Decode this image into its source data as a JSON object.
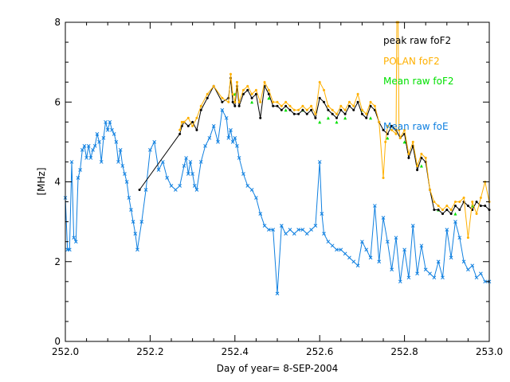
{
  "chart_data": {
    "type": "line",
    "title": "",
    "xlabel": "Day of year= 8-SEP-2004",
    "ylabel": "[MHz]",
    "xlim": [
      252.0,
      253.0
    ],
    "ylim": [
      0,
      8
    ],
    "x_ticks": [
      252.0,
      252.2,
      252.4,
      252.6,
      252.8,
      253.0
    ],
    "x_tick_labels": [
      "252.0",
      "252.2",
      "252.4",
      "252.6",
      "252.8",
      "253.0"
    ],
    "y_ticks": [
      0,
      2,
      4,
      6,
      8
    ],
    "y_tick_labels": [
      "0",
      "2",
      "4",
      "6",
      "8"
    ],
    "grid": false,
    "legend_position": "top-right",
    "series": [
      {
        "name": "peak raw foF2",
        "color": "#000000",
        "x": [
          252.175,
          252.27,
          252.275,
          252.28,
          252.29,
          252.3,
          252.31,
          252.32,
          252.335,
          252.35,
          252.37,
          252.385,
          252.39,
          252.395,
          252.4,
          252.405,
          252.41,
          252.42,
          252.43,
          252.44,
          252.45,
          252.46,
          252.47,
          252.48,
          252.49,
          252.5,
          252.51,
          252.52,
          252.53,
          252.54,
          252.55,
          252.56,
          252.57,
          252.58,
          252.59,
          252.6,
          252.61,
          252.62,
          252.63,
          252.64,
          252.65,
          252.66,
          252.67,
          252.68,
          252.69,
          252.7,
          252.71,
          252.72,
          252.73,
          252.74,
          252.75,
          252.76,
          252.77,
          252.78,
          252.79,
          252.8,
          252.81,
          252.82,
          252.83,
          252.84,
          252.85,
          252.86,
          252.87,
          252.88,
          252.89,
          252.9,
          252.91,
          252.92,
          252.93,
          252.94,
          252.95,
          252.96,
          252.97,
          252.98,
          252.99,
          253.0
        ],
        "values": [
          3.8,
          5.2,
          5.4,
          5.5,
          5.4,
          5.5,
          5.3,
          5.8,
          6.1,
          6.4,
          6.0,
          6.1,
          6.6,
          6.0,
          5.9,
          6.4,
          5.9,
          6.2,
          6.3,
          6.1,
          6.2,
          5.6,
          6.4,
          6.2,
          5.9,
          5.9,
          5.8,
          5.9,
          5.8,
          5.7,
          5.7,
          5.8,
          5.7,
          5.8,
          5.6,
          6.1,
          6.0,
          5.8,
          5.7,
          5.6,
          5.8,
          5.7,
          5.9,
          5.8,
          6.0,
          5.7,
          5.6,
          5.9,
          5.8,
          5.5,
          5.3,
          5.2,
          5.4,
          5.3,
          5.1,
          5.2,
          4.6,
          4.9,
          4.3,
          4.6,
          4.5,
          3.8,
          3.3,
          3.3,
          3.2,
          3.3,
          3.2,
          3.4,
          3.3,
          3.5,
          3.4,
          3.3,
          3.5,
          3.4,
          3.4,
          3.3
        ]
      },
      {
        "name": "POLAN foF2",
        "color": "#ffb000",
        "x": [
          252.27,
          252.275,
          252.28,
          252.29,
          252.3,
          252.31,
          252.32,
          252.335,
          252.35,
          252.37,
          252.385,
          252.39,
          252.395,
          252.4,
          252.405,
          252.41,
          252.42,
          252.43,
          252.44,
          252.45,
          252.46,
          252.47,
          252.48,
          252.49,
          252.5,
          252.51,
          252.52,
          252.53,
          252.54,
          252.55,
          252.56,
          252.57,
          252.58,
          252.59,
          252.6,
          252.61,
          252.62,
          252.63,
          252.64,
          252.65,
          252.66,
          252.67,
          252.68,
          252.69,
          252.7,
          252.71,
          252.72,
          252.73,
          252.74,
          252.75,
          252.755,
          252.76,
          252.77,
          252.78,
          252.782,
          252.785,
          252.787,
          252.79,
          252.8,
          252.81,
          252.82,
          252.83,
          252.84,
          252.85,
          252.86,
          252.87,
          252.88,
          252.89,
          252.9,
          252.91,
          252.92,
          252.93,
          252.94,
          252.95,
          252.96,
          252.97,
          252.98,
          252.99,
          253.0
        ],
        "values": [
          5.3,
          5.5,
          5.5,
          5.6,
          5.4,
          5.6,
          5.9,
          6.2,
          6.4,
          6.1,
          6.0,
          6.7,
          6.2,
          6.0,
          6.5,
          6.0,
          6.3,
          6.4,
          6.2,
          6.3,
          6.0,
          6.5,
          6.3,
          6.0,
          6.0,
          5.9,
          6.0,
          5.9,
          5.8,
          5.8,
          5.9,
          5.8,
          5.9,
          5.7,
          6.5,
          6.3,
          5.9,
          5.8,
          5.7,
          5.9,
          5.8,
          6.0,
          5.9,
          6.2,
          5.8,
          5.7,
          6.0,
          5.9,
          5.5,
          4.1,
          5.0,
          5.4,
          5.3,
          5.2,
          8.0,
          8.0,
          5.3,
          5.1,
          5.3,
          4.7,
          5.0,
          4.4,
          4.7,
          4.6,
          3.8,
          3.5,
          3.4,
          3.3,
          3.4,
          3.3,
          3.5,
          3.5,
          3.6,
          2.6,
          3.5,
          3.2,
          3.6,
          4.0,
          3.5
        ]
      },
      {
        "name": "Mean raw foF2",
        "color": "#00e000",
        "x": [
          252.4,
          252.44,
          252.48,
          252.52,
          252.56,
          252.6,
          252.62,
          252.64,
          252.66,
          252.7,
          252.72,
          252.76,
          252.8,
          252.84,
          252.88,
          252.92,
          252.96
        ],
        "values": [
          6.2,
          6.0,
          6.1,
          5.8,
          5.8,
          5.5,
          5.6,
          5.5,
          5.6,
          5.8,
          5.6,
          5.1,
          5.0,
          4.4,
          3.3,
          3.2,
          3.4
        ]
      },
      {
        "name": "Mean raw foE",
        "color": "#1080e0",
        "x": [
          252.0,
          252.005,
          252.01,
          252.015,
          252.02,
          252.025,
          252.03,
          252.035,
          252.04,
          252.045,
          252.05,
          252.055,
          252.06,
          252.065,
          252.07,
          252.075,
          252.08,
          252.085,
          252.09,
          252.095,
          252.1,
          252.105,
          252.11,
          252.115,
          252.12,
          252.125,
          252.13,
          252.135,
          252.14,
          252.145,
          252.15,
          252.155,
          252.16,
          252.165,
          252.17,
          252.18,
          252.19,
          252.2,
          252.21,
          252.22,
          252.23,
          252.24,
          252.25,
          252.26,
          252.27,
          252.28,
          252.285,
          252.29,
          252.295,
          252.3,
          252.305,
          252.31,
          252.32,
          252.33,
          252.34,
          252.35,
          252.36,
          252.37,
          252.38,
          252.385,
          252.39,
          252.395,
          252.4,
          252.405,
          252.41,
          252.42,
          252.43,
          252.44,
          252.45,
          252.46,
          252.47,
          252.48,
          252.49,
          252.5,
          252.51,
          252.52,
          252.53,
          252.54,
          252.55,
          252.56,
          252.57,
          252.58,
          252.59,
          252.6,
          252.605,
          252.61,
          252.62,
          252.63,
          252.64,
          252.65,
          252.66,
          252.67,
          252.68,
          252.69,
          252.7,
          252.71,
          252.72,
          252.73,
          252.74,
          252.75,
          252.76,
          252.77,
          252.78,
          252.79,
          252.8,
          252.81,
          252.82,
          252.83,
          252.84,
          252.85,
          252.86,
          252.87,
          252.88,
          252.89,
          252.9,
          252.91,
          252.92,
          252.93,
          252.94,
          252.95,
          252.96,
          252.97,
          252.98,
          252.99,
          253.0
        ],
        "values": [
          3.6,
          2.3,
          2.3,
          4.5,
          2.6,
          2.5,
          4.1,
          4.3,
          4.8,
          4.9,
          4.6,
          4.9,
          4.6,
          4.8,
          4.9,
          5.2,
          5.0,
          4.5,
          5.1,
          5.5,
          5.3,
          5.5,
          5.3,
          5.2,
          5.0,
          4.5,
          4.8,
          4.4,
          4.2,
          4.0,
          3.6,
          3.3,
          3.0,
          2.7,
          2.3,
          3.0,
          3.8,
          4.8,
          5.0,
          4.3,
          4.5,
          4.1,
          3.9,
          3.8,
          3.9,
          4.4,
          4.6,
          4.2,
          4.5,
          4.2,
          3.9,
          3.8,
          4.5,
          4.9,
          5.1,
          5.4,
          5.0,
          5.8,
          5.6,
          5.1,
          5.3,
          5.0,
          5.1,
          4.9,
          4.6,
          4.2,
          3.9,
          3.8,
          3.6,
          3.2,
          2.9,
          2.8,
          2.8,
          1.2,
          2.9,
          2.7,
          2.8,
          2.7,
          2.8,
          2.8,
          2.7,
          2.8,
          2.9,
          4.5,
          3.2,
          2.7,
          2.5,
          2.4,
          2.3,
          2.3,
          2.2,
          2.1,
          2.0,
          1.9,
          2.5,
          2.3,
          2.1,
          3.4,
          2.0,
          3.1,
          2.5,
          1.8,
          2.6,
          1.5,
          2.3,
          1.6,
          2.9,
          1.7,
          2.4,
          1.8,
          1.7,
          1.6,
          2.0,
          1.6,
          2.8,
          2.1,
          3.0,
          2.6,
          2.0,
          1.8,
          1.9,
          1.6,
          1.7,
          1.5,
          1.5
        ]
      }
    ]
  },
  "legend": {
    "items": [
      "peak raw foF2",
      "POLAN foF2",
      "Mean raw foF2",
      "Mean raw foE"
    ]
  }
}
